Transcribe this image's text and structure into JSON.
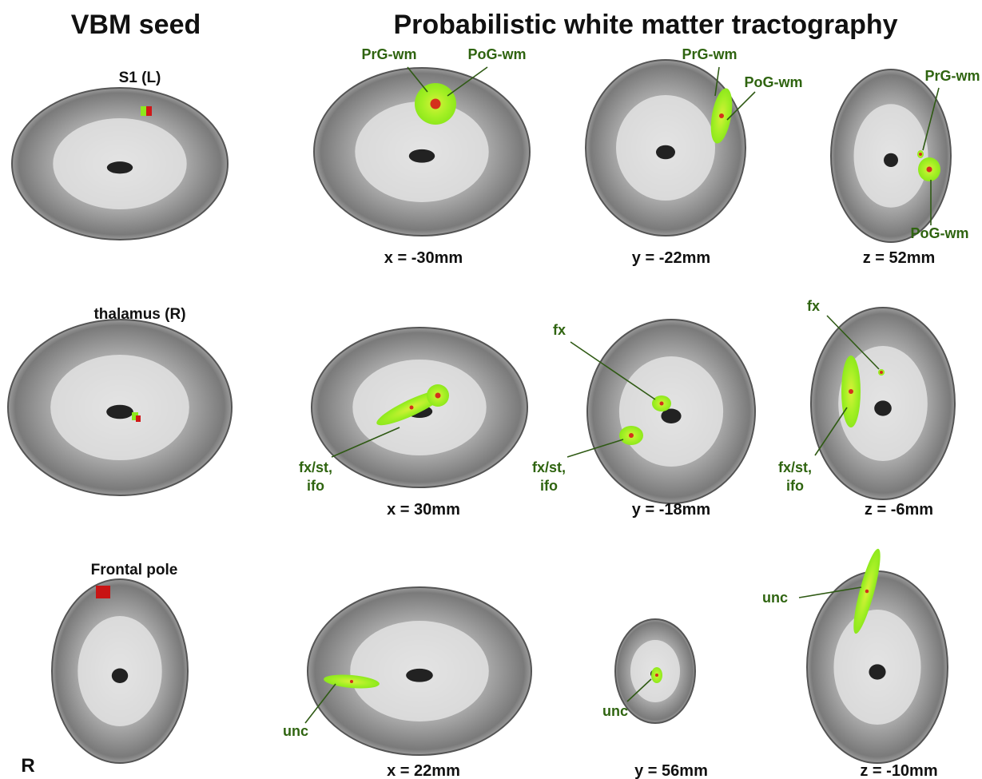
{
  "headers": {
    "seed": "VBM seed",
    "tractography": "Probabilistic white matter tractography"
  },
  "rows": [
    {
      "seed_label": "S1 (L)",
      "panels": [
        {
          "coordinate": "x = -30mm",
          "tracts": [
            [
              "PrG-wm"
            ],
            [
              "PoG-wm"
            ]
          ]
        },
        {
          "coordinate": "y = -22mm",
          "tracts": [
            [
              "PrG-wm"
            ],
            [
              "PoG-wm"
            ]
          ]
        },
        {
          "coordinate": "z = 52mm",
          "tracts": [
            [
              "PrG-wm"
            ],
            [
              "PoG-wm"
            ]
          ]
        }
      ]
    },
    {
      "seed_label": "thalamus (R)",
      "panels": [
        {
          "coordinate": "x = 30mm",
          "tracts": [
            [
              "fx/st,",
              "ifo"
            ]
          ]
        },
        {
          "coordinate": "y = -18mm",
          "tracts": [
            [
              "fx"
            ],
            [
              "fx/st,",
              "ifo"
            ]
          ]
        },
        {
          "coordinate": "z = -6mm",
          "tracts": [
            [
              "fx"
            ],
            [
              "fx/st,",
              "ifo"
            ]
          ]
        }
      ]
    },
    {
      "seed_label": "Frontal pole",
      "panels": [
        {
          "coordinate": "x = 22mm",
          "tracts": [
            [
              "unc"
            ]
          ]
        },
        {
          "coordinate": "y = 56mm",
          "tracts": [
            [
              "unc"
            ]
          ]
        },
        {
          "coordinate": "z = -10mm",
          "tracts": [
            [
              "unc"
            ]
          ]
        }
      ]
    }
  ],
  "orientation_marker": "R"
}
